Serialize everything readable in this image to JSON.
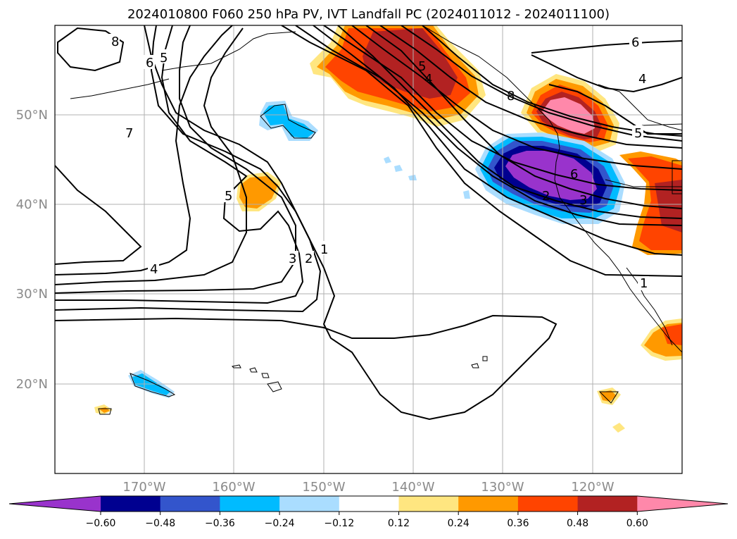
{
  "title": "2024010800 F060 250 hPa PV, IVT Landfall PC (2024011012 - 2024011100)",
  "map": {
    "lat_labels": [
      "50°N",
      "40°N",
      "30°N",
      "20°N"
    ],
    "lon_labels": [
      "170°W",
      "160°W",
      "150°W",
      "140°W",
      "130°W",
      "120°W"
    ],
    "extent": {
      "lon": [
        -180,
        -110
      ],
      "lat": [
        10,
        60
      ]
    },
    "gridlines": true,
    "coastlines": true
  },
  "contours": {
    "variable": "250 hPa PV",
    "levels": [
      1,
      2,
      3,
      4,
      5,
      6,
      7,
      8
    ],
    "labels": [
      "8",
      "6",
      "5",
      "7",
      "5",
      "4",
      "3",
      "2",
      "1",
      "5",
      "4",
      "8",
      "6",
      "2",
      "3",
      "6",
      "4",
      "5",
      "1"
    ]
  },
  "colorbar": {
    "ticks": [
      "−0.60",
      "−0.48",
      "−0.36",
      "−0.24",
      "−0.12",
      "0.12",
      "0.24",
      "0.36",
      "0.48",
      "0.60"
    ],
    "colors": [
      "#9933cc",
      "#000090",
      "#3355cc",
      "#00bbff",
      "#aaddff",
      "#ffffff",
      "#ffe680",
      "#ff9900",
      "#ff4400",
      "#b22222",
      "#ff88aa"
    ],
    "extend": "both"
  }
}
